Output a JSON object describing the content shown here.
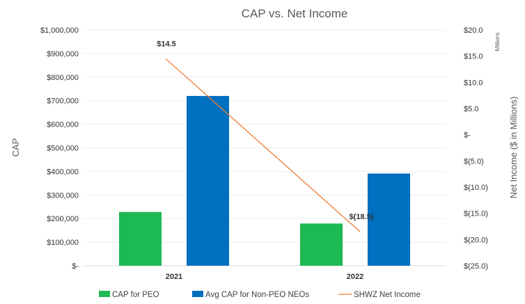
{
  "chart_data": {
    "type": "bar+line",
    "title": "CAP vs. Net Income",
    "categories": [
      "2021",
      "2022"
    ],
    "series": [
      {
        "name": "CAP for PEO",
        "kind": "bar",
        "axis": "left",
        "color": "#1DB954",
        "values": [
          228000,
          179000
        ]
      },
      {
        "name": "Avg CAP for Non-PEO NEOs",
        "kind": "bar",
        "axis": "left",
        "color": "#0070C0",
        "values": [
          720000,
          391000
        ]
      },
      {
        "name": "SHWZ Net Income",
        "kind": "line",
        "axis": "right",
        "color": "#ED7D31",
        "values": [
          14.5,
          -18.5
        ],
        "labels": [
          "$14.5",
          "$(18.5)"
        ]
      }
    ],
    "left_axis": {
      "label": "CAP",
      "range": [
        0,
        1000000
      ],
      "ticks": [
        {
          "value": 0,
          "label": "$-"
        },
        {
          "value": 100000,
          "label": "$100,000"
        },
        {
          "value": 200000,
          "label": "$200,000"
        },
        {
          "value": 300000,
          "label": "$300,000"
        },
        {
          "value": 400000,
          "label": "$400,000"
        },
        {
          "value": 500000,
          "label": "$500,000"
        },
        {
          "value": 600000,
          "label": "$600,000"
        },
        {
          "value": 700000,
          "label": "$700,000"
        },
        {
          "value": 800000,
          "label": "$800,000"
        },
        {
          "value": 900000,
          "label": "$900,000"
        },
        {
          "value": 1000000,
          "label": "$1,000,000"
        }
      ]
    },
    "right_axis": {
      "label": "Net Income ($ in Millions)",
      "units": "Millions",
      "range": [
        -25,
        20
      ],
      "ticks": [
        {
          "value": 20,
          "label": "$20.0"
        },
        {
          "value": 15,
          "label": "$15.0"
        },
        {
          "value": 10,
          "label": "$10.0"
        },
        {
          "value": 5,
          "label": "$5.0"
        },
        {
          "value": 0,
          "label": "$-"
        },
        {
          "value": -5,
          "label": "$(5.0)"
        },
        {
          "value": -10,
          "label": "$(10.0)"
        },
        {
          "value": -15,
          "label": "$(15.0)"
        },
        {
          "value": -20,
          "label": "$(20.0)"
        },
        {
          "value": -25,
          "label": "$(25.0)"
        }
      ]
    },
    "legend_position": "bottom",
    "grid": true
  }
}
